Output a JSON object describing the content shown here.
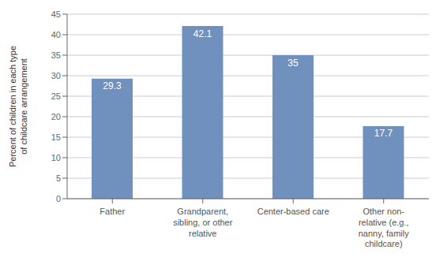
{
  "chart_data": {
    "type": "bar",
    "ylabel": "Percent of children in each type\nof childcare arrangement",
    "categories": [
      "Father",
      "Grandparent,\nsibling, or other\nrelative",
      "Center-based care",
      "Other non-\nrelative (e.g.,\nnanny, family\nchildcare)"
    ],
    "values": [
      29.3,
      42.1,
      35.0,
      17.7
    ],
    "color": "#7090be",
    "ylim": [
      0,
      45
    ],
    "yticks": [
      0,
      5,
      10,
      15,
      20,
      25,
      30,
      35,
      40,
      45
    ],
    "grid": true,
    "data_labels": true
  }
}
